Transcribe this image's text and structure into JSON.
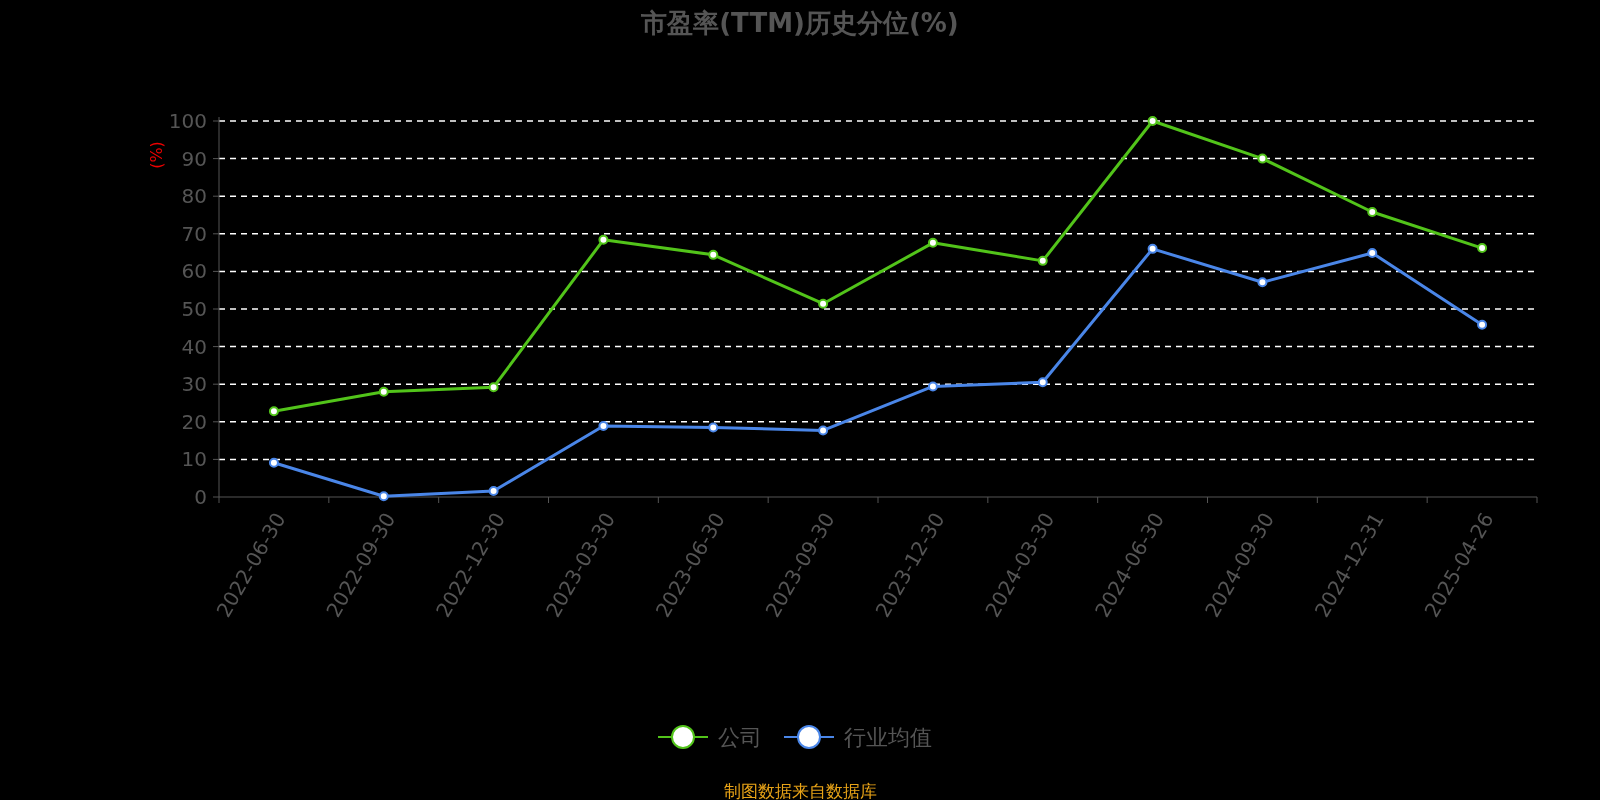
{
  "chart_data": {
    "type": "line",
    "title": "市盈率(TTM)历史分位(%)",
    "ylabel": "(%)",
    "categories": [
      "2022-06-30",
      "2022-09-30",
      "2022-12-30",
      "2023-03-30",
      "2023-06-30",
      "2023-09-30",
      "2023-12-30",
      "2024-03-30",
      "2024-06-30",
      "2024-09-30",
      "2024-12-31",
      "2025-04-26"
    ],
    "series": [
      {
        "name": "公司",
        "color": "#52c41a",
        "values": [
          22.8,
          28,
          29.2,
          68.4,
          64.4,
          51.4,
          67.6,
          62.8,
          100,
          90,
          75.8,
          66.2
        ]
      },
      {
        "name": "行业均值",
        "color": "#4a86e8",
        "values": [
          9.1,
          0.2,
          1.6,
          18.9,
          18.5,
          17.7,
          29.4,
          30.5,
          66,
          57.1,
          64.9,
          45.8
        ]
      }
    ],
    "ylim": [
      0,
      100
    ],
    "yticks": [
      0,
      10,
      20,
      30,
      40,
      50,
      60,
      70,
      80,
      90,
      100
    ],
    "grid": "y",
    "legend": "bottom",
    "marker": "circle",
    "line_style": "solid",
    "annotations": [
      "制图数据来自数据库"
    ]
  }
}
